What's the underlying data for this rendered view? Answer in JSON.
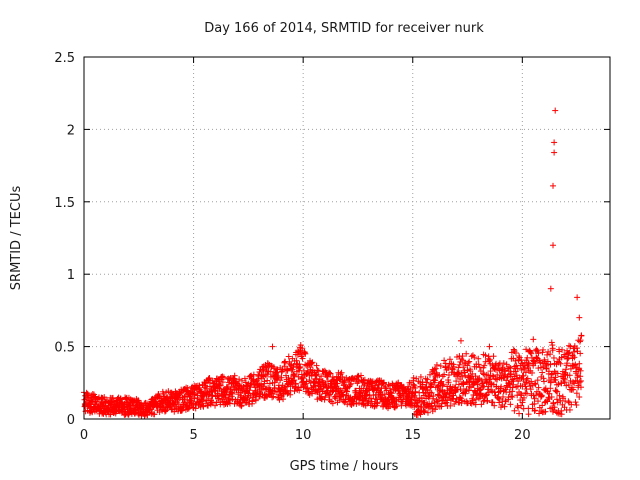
{
  "chart_data": {
    "type": "scatter",
    "title": "Day 166 of 2014, SRMTID for receiver nurk",
    "xlabel": "GPS time / hours",
    "ylabel": "SRMTID / TECUs",
    "xlim": [
      0,
      24
    ],
    "ylim": [
      0,
      2.5
    ],
    "xticks": [
      0,
      5,
      10,
      15,
      20
    ],
    "xtick_labels": [
      "0",
      "5",
      "10",
      "15",
      "20"
    ],
    "yticks": [
      0,
      0.5,
      1,
      1.5,
      2,
      2.5
    ],
    "ytick_labels": [
      "0",
      "0.5",
      "1",
      "1.5",
      "2",
      "2.5"
    ],
    "grid": true,
    "marker": "+",
    "series": [
      {
        "name": "SRMTID",
        "color": "#ff0000",
        "note": "dense point cloud; below is a representative envelope (hour, TECU) approximated from the plot",
        "x": [
          0.0,
          0.3,
          0.6,
          0.9,
          1.2,
          1.5,
          1.8,
          2.1,
          2.4,
          2.7,
          3.0,
          3.3,
          3.6,
          3.9,
          4.2,
          4.5,
          4.8,
          5.1,
          5.4,
          5.7,
          6.0,
          6.3,
          6.6,
          6.9,
          7.2,
          7.5,
          7.8,
          8.1,
          8.4,
          8.7,
          9.0,
          9.3,
          9.6,
          9.9,
          10.2,
          10.5,
          10.8,
          11.1,
          11.4,
          11.7,
          12.0,
          12.3,
          12.6,
          12.9,
          13.2,
          13.5,
          13.8,
          14.1,
          14.4,
          14.7,
          15.0,
          15.3,
          15.6,
          15.9,
          16.2,
          16.5,
          16.8,
          17.1,
          17.4,
          17.7,
          18.0,
          18.3,
          18.6,
          18.9,
          19.2,
          19.5,
          19.8,
          20.1,
          20.4,
          20.7,
          21.0,
          21.3,
          21.5,
          21.8,
          22.1,
          22.4,
          22.7
        ],
        "y": [
          0.12,
          0.11,
          0.1,
          0.09,
          0.09,
          0.1,
          0.09,
          0.09,
          0.08,
          0.06,
          0.07,
          0.1,
          0.12,
          0.13,
          0.12,
          0.13,
          0.15,
          0.15,
          0.17,
          0.19,
          0.18,
          0.2,
          0.19,
          0.2,
          0.18,
          0.19,
          0.22,
          0.24,
          0.28,
          0.25,
          0.24,
          0.3,
          0.31,
          0.36,
          0.3,
          0.26,
          0.24,
          0.22,
          0.21,
          0.22,
          0.2,
          0.19,
          0.21,
          0.18,
          0.17,
          0.18,
          0.16,
          0.16,
          0.17,
          0.16,
          0.17,
          0.15,
          0.18,
          0.2,
          0.23,
          0.25,
          0.26,
          0.27,
          0.28,
          0.27,
          0.26,
          0.28,
          0.27,
          0.24,
          0.24,
          0.26,
          0.25,
          0.26,
          0.25,
          0.26,
          0.25,
          0.3,
          0.28,
          0.26,
          0.27,
          0.28,
          0.33
        ],
        "spikes": [
          {
            "x": 8.6,
            "y": 0.5
          },
          {
            "x": 17.2,
            "y": 0.54
          },
          {
            "x": 18.5,
            "y": 0.5
          },
          {
            "x": 20.5,
            "y": 0.55
          },
          {
            "x": 21.3,
            "y": 0.9
          },
          {
            "x": 21.4,
            "y": 1.2
          },
          {
            "x": 21.4,
            "y": 1.61
          },
          {
            "x": 21.45,
            "y": 1.84
          },
          {
            "x": 21.45,
            "y": 1.91
          },
          {
            "x": 21.5,
            "y": 2.13
          },
          {
            "x": 22.5,
            "y": 0.84
          },
          {
            "x": 22.6,
            "y": 0.7
          }
        ]
      }
    ]
  }
}
